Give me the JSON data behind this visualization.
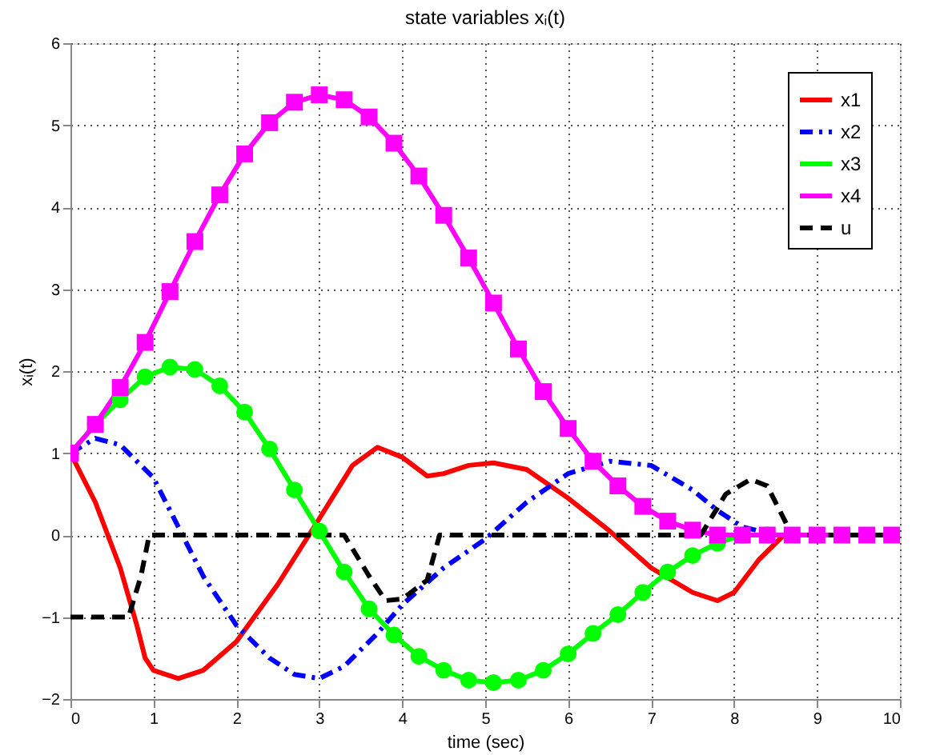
{
  "chart_data": {
    "type": "line",
    "title": "state variables xᵢ(t)",
    "xlabel": "time (sec)",
    "ylabel": "xᵢ(t)",
    "xlim": [
      0,
      10
    ],
    "ylim": [
      -2,
      6
    ],
    "xticks": [
      0,
      1,
      2,
      3,
      4,
      5,
      6,
      7,
      8,
      9,
      10
    ],
    "yticks": [
      -2,
      -1,
      0,
      1,
      2,
      3,
      4,
      5,
      6
    ],
    "grid": true,
    "legend": "top right",
    "series": [
      {
        "name": "x1",
        "color": "#ff0000",
        "line_style": "solid",
        "marker": "none",
        "x": [
          0,
          0.3,
          0.6,
          0.8,
          0.9,
          1.0,
          1.3,
          1.6,
          2.0,
          2.5,
          3.0,
          3.4,
          3.7,
          4.0,
          4.3,
          4.5,
          4.8,
          5.1,
          5.5,
          6.0,
          6.5,
          7.0,
          7.5,
          7.8,
          8.0,
          8.3,
          8.6,
          10
        ],
        "values": [
          1,
          0.4,
          -0.4,
          -1.1,
          -1.5,
          -1.65,
          -1.75,
          -1.65,
          -1.3,
          -0.6,
          0.2,
          0.85,
          1.07,
          0.95,
          0.72,
          0.75,
          0.85,
          0.88,
          0.8,
          0.45,
          0.05,
          -0.4,
          -0.7,
          -0.8,
          -0.7,
          -0.3,
          0,
          0
        ]
      },
      {
        "name": "x2",
        "color": "#0000ff",
        "line_style": "dashdot",
        "marker": "none",
        "x": [
          0,
          0.3,
          0.6,
          1.0,
          1.3,
          1.6,
          2.0,
          2.4,
          2.7,
          3.0,
          3.3,
          3.7,
          4.0,
          4.5,
          5.0,
          5.5,
          6.0,
          6.5,
          7.0,
          7.5,
          7.8,
          8.1,
          8.5,
          10
        ],
        "values": [
          1,
          1.18,
          1.1,
          0.7,
          0.1,
          -0.5,
          -1.1,
          -1.5,
          -1.7,
          -1.75,
          -1.6,
          -1.2,
          -0.85,
          -0.4,
          -0.05,
          0.4,
          0.75,
          0.9,
          0.85,
          0.55,
          0.3,
          0.1,
          0,
          0
        ]
      },
      {
        "name": "x3",
        "color": "#00ff00",
        "line_style": "solid",
        "marker": "circle",
        "x": [
          0,
          0.3,
          0.6,
          0.9,
          1.2,
          1.5,
          1.8,
          2.1,
          2.4,
          2.7,
          3.0,
          3.3,
          3.6,
          3.9,
          4.2,
          4.5,
          4.8,
          5.1,
          5.4,
          5.7,
          6.0,
          6.3,
          6.6,
          6.9,
          7.2,
          7.5,
          7.8,
          8.1,
          8.4
        ],
        "values": [
          1,
          1.35,
          1.65,
          1.93,
          2.05,
          2.02,
          1.82,
          1.5,
          1.05,
          0.55,
          0.05,
          -0.45,
          -0.9,
          -1.22,
          -1.48,
          -1.65,
          -1.77,
          -1.8,
          -1.77,
          -1.65,
          -1.45,
          -1.2,
          -0.97,
          -0.7,
          -0.45,
          -0.25,
          -0.1,
          0,
          0
        ]
      },
      {
        "name": "x4",
        "color": "#ff00ff",
        "line_style": "solid",
        "marker": "square",
        "x": [
          0,
          0.3,
          0.6,
          0.9,
          1.2,
          1.5,
          1.8,
          2.1,
          2.4,
          2.7,
          3.0,
          3.3,
          3.6,
          3.9,
          4.2,
          4.5,
          4.8,
          5.1,
          5.4,
          5.7,
          6.0,
          6.3,
          6.6,
          6.9,
          7.2,
          7.5,
          7.8,
          8.1,
          8.4,
          8.7,
          9.0,
          9.3,
          9.6,
          9.9
        ],
        "values": [
          1,
          1.35,
          1.8,
          2.35,
          2.97,
          3.58,
          4.15,
          4.65,
          5.03,
          5.28,
          5.37,
          5.31,
          5.1,
          4.78,
          4.38,
          3.9,
          3.38,
          2.83,
          2.27,
          1.75,
          1.3,
          0.9,
          0.6,
          0.35,
          0.17,
          0.06,
          0,
          0,
          0,
          0,
          0,
          0,
          0,
          0
        ]
      },
      {
        "name": "u",
        "color": "#000000",
        "line_style": "dashed",
        "marker": "none",
        "x": [
          0,
          0.7,
          0.85,
          0.95,
          3.3,
          3.6,
          3.8,
          4.0,
          4.3,
          4.45,
          7.6,
          7.9,
          8.2,
          8.4,
          8.7,
          10
        ],
        "values": [
          -1,
          -1,
          -0.5,
          0,
          0,
          -0.5,
          -0.8,
          -0.78,
          -0.55,
          0,
          0,
          0.5,
          0.68,
          0.6,
          0,
          0
        ]
      }
    ]
  }
}
